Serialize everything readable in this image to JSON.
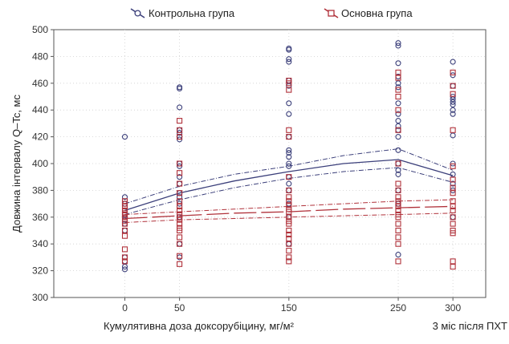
{
  "chart_data": {
    "type": "scatter",
    "title": "",
    "xlabel": "Кумулятивна доза доксорубіцину, мг/м²",
    "x_extra_label": "3 міс після ПХТ",
    "ylabel": "Довжина інтервалу Q–Tc, мс",
    "xlim": [
      -65,
      330
    ],
    "ylim": [
      300,
      500
    ],
    "x_ticks": [
      {
        "value": 0,
        "label": "0"
      },
      {
        "value": 50,
        "label": "50"
      },
      {
        "value": 150,
        "label": "150"
      },
      {
        "value": 250,
        "label": "250"
      },
      {
        "value": 300,
        "label": "300"
      }
    ],
    "y_ticks": [
      {
        "value": 300,
        "label": "300"
      },
      {
        "value": 320,
        "label": "320"
      },
      {
        "value": 340,
        "label": "340"
      },
      {
        "value": 360,
        "label": "360"
      },
      {
        "value": 380,
        "label": "380"
      },
      {
        "value": 400,
        "label": "400"
      },
      {
        "value": 420,
        "label": "420"
      },
      {
        "value": 440,
        "label": "440"
      },
      {
        "value": 460,
        "label": "460"
      },
      {
        "value": 480,
        "label": "480"
      },
      {
        "value": 500,
        "label": "500"
      }
    ],
    "grid": true,
    "legend_position": "top",
    "series": [
      {
        "name": "Контрольна група",
        "color": "#3b3f7a",
        "marker": "circle",
        "x": [
          0,
          0,
          0,
          0,
          0,
          0,
          0,
          0,
          0,
          0,
          0,
          0,
          50,
          50,
          50,
          50,
          50,
          50,
          50,
          50,
          50,
          50,
          50,
          50,
          50,
          50,
          50,
          50,
          50,
          150,
          150,
          150,
          150,
          150,
          150,
          150,
          150,
          150,
          150,
          150,
          150,
          150,
          150,
          150,
          150,
          150,
          150,
          150,
          150,
          250,
          250,
          250,
          250,
          250,
          250,
          250,
          250,
          250,
          250,
          250,
          250,
          250,
          250,
          250,
          250,
          250,
          250,
          250,
          300,
          300,
          300,
          300,
          300,
          300,
          300,
          300,
          300,
          300,
          300,
          300,
          300,
          300,
          300
        ],
        "y": [
          420,
          375,
          370,
          365,
          362,
          358,
          355,
          350,
          330,
          327,
          323,
          321,
          457,
          456,
          442,
          425,
          423,
          420,
          418,
          400,
          398,
          390,
          385,
          378,
          375,
          370,
          360,
          340,
          330,
          486,
          485,
          478,
          476,
          462,
          458,
          445,
          437,
          420,
          410,
          408,
          405,
          400,
          398,
          390,
          385,
          380,
          370,
          360,
          340,
          490,
          488,
          475,
          465,
          460,
          457,
          445,
          437,
          432,
          428,
          425,
          420,
          410,
          400,
          395,
          392,
          380,
          370,
          332,
          476,
          466,
          458,
          450,
          448,
          446,
          444,
          440,
          437,
          421,
          400,
          392,
          385,
          380,
          360
        ],
        "trend": {
          "x": [
            0,
            50,
            100,
            150,
            200,
            250,
            300
          ],
          "y": [
            365,
            378,
            387,
            394,
            400,
            403,
            391
          ]
        },
        "ci_upper": {
          "x": [
            0,
            50,
            100,
            150,
            200,
            250,
            300
          ],
          "y": [
            370,
            383,
            392,
            398,
            406,
            411,
            395
          ]
        },
        "ci_lower": {
          "x": [
            0,
            50,
            100,
            150,
            200,
            250,
            300
          ],
          "y": [
            362,
            373,
            382,
            389,
            394,
            397,
            386
          ]
        }
      },
      {
        "name": "Основна група",
        "color": "#b0313a",
        "marker": "square",
        "x": [
          0,
          0,
          0,
          0,
          0,
          0,
          0,
          0,
          0,
          0,
          0,
          0,
          0,
          0,
          50,
          50,
          50,
          50,
          50,
          50,
          50,
          50,
          50,
          50,
          50,
          50,
          50,
          50,
          50,
          50,
          50,
          50,
          50,
          50,
          150,
          150,
          150,
          150,
          150,
          150,
          150,
          150,
          150,
          150,
          150,
          150,
          150,
          150,
          150,
          150,
          150,
          150,
          150,
          150,
          150,
          150,
          250,
          250,
          250,
          250,
          250,
          250,
          250,
          250,
          250,
          250,
          250,
          250,
          250,
          250,
          250,
          250,
          250,
          250,
          250,
          250,
          250,
          300,
          300,
          300,
          300,
          300,
          300,
          300,
          300,
          300,
          300,
          300,
          300,
          300,
          300,
          300,
          300,
          300
        ],
        "y": [
          372,
          370,
          368,
          365,
          363,
          362,
          360,
          357,
          355,
          350,
          346,
          336,
          330,
          327,
          432,
          425,
          420,
          400,
          393,
          385,
          378,
          372,
          368,
          365,
          362,
          360,
          358,
          355,
          352,
          350,
          345,
          340,
          331,
          325,
          462,
          460,
          455,
          425,
          420,
          390,
          380,
          375,
          372,
          369,
          366,
          364,
          360,
          357,
          355,
          350,
          347,
          344,
          340,
          335,
          330,
          327,
          468,
          464,
          455,
          450,
          440,
          425,
          400,
          385,
          380,
          375,
          372,
          370,
          368,
          365,
          362,
          360,
          355,
          350,
          345,
          340,
          327,
          468,
          458,
          452,
          425,
          398,
          388,
          382,
          378,
          372,
          368,
          365,
          360,
          355,
          350,
          348,
          327,
          323
        ],
        "trend": {
          "x": [
            0,
            50,
            100,
            150,
            200,
            250,
            300
          ],
          "y": [
            359,
            361,
            363,
            364,
            366,
            367,
            368
          ]
        },
        "ci_upper": {
          "x": [
            0,
            50,
            100,
            150,
            200,
            250,
            300
          ],
          "y": [
            362,
            364,
            366,
            368,
            370,
            372,
            373
          ]
        },
        "ci_lower": {
          "x": [
            0,
            50,
            100,
            150,
            200,
            250,
            300
          ],
          "y": [
            356,
            358,
            359,
            360,
            361,
            362,
            363
          ]
        }
      }
    ]
  }
}
